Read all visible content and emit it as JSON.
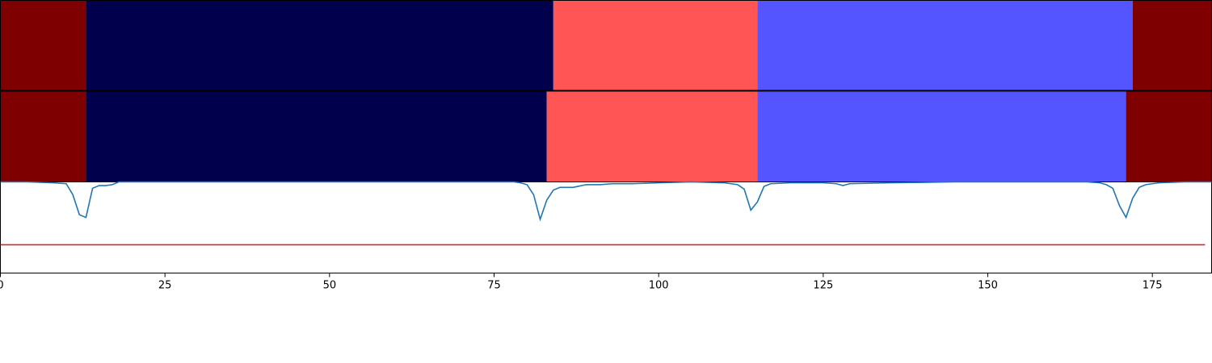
{
  "chart_data": [
    {
      "type": "heatmap",
      "panel": "segmentation-row-1",
      "xlim": [
        0,
        184
      ],
      "segments": [
        {
          "start": 0,
          "end": 13,
          "color": "#7f0000"
        },
        {
          "start": 13,
          "end": 84,
          "color": "#00004c"
        },
        {
          "start": 84,
          "end": 115,
          "color": "#ff5555"
        },
        {
          "start": 115,
          "end": 172,
          "color": "#5555ff"
        },
        {
          "start": 172,
          "end": 184,
          "color": "#7f0000"
        }
      ]
    },
    {
      "type": "heatmap",
      "panel": "segmentation-row-2",
      "xlim": [
        0,
        184
      ],
      "segments": [
        {
          "start": 0,
          "end": 13,
          "color": "#7f0000"
        },
        {
          "start": 13,
          "end": 83,
          "color": "#00004c"
        },
        {
          "start": 83,
          "end": 115,
          "color": "#ff5555"
        },
        {
          "start": 115,
          "end": 171,
          "color": "#5555ff"
        },
        {
          "start": 171,
          "end": 184,
          "color": "#7f0000"
        }
      ]
    },
    {
      "type": "line",
      "panel": "signal",
      "xlim": [
        0,
        184
      ],
      "ylim": [
        0,
        1
      ],
      "xticks": [
        0,
        25,
        50,
        75,
        100,
        125,
        150,
        175
      ],
      "series": [
        {
          "color": "#1f77b4",
          "points": [
            [
              0,
              1.0
            ],
            [
              4,
              1.0
            ],
            [
              8,
              0.99
            ],
            [
              10,
              0.98
            ],
            [
              11,
              0.86
            ],
            [
              12,
              0.64
            ],
            [
              13,
              0.61
            ],
            [
              14,
              0.93
            ],
            [
              15,
              0.96
            ],
            [
              16,
              0.96
            ],
            [
              17,
              0.97
            ],
            [
              18,
              1.0
            ],
            [
              20,
              1.0
            ],
            [
              30,
              1.0
            ],
            [
              40,
              1.0
            ],
            [
              50,
              1.0
            ],
            [
              60,
              1.0
            ],
            [
              70,
              1.0
            ],
            [
              78,
              1.0
            ],
            [
              79,
              0.99
            ],
            [
              80,
              0.97
            ],
            [
              81,
              0.86
            ],
            [
              82,
              0.59
            ],
            [
              83,
              0.8
            ],
            [
              84,
              0.91
            ],
            [
              85,
              0.94
            ],
            [
              87,
              0.94
            ],
            [
              89,
              0.97
            ],
            [
              91,
              0.97
            ],
            [
              93,
              0.98
            ],
            [
              96,
              0.98
            ],
            [
              100,
              0.99
            ],
            [
              105,
              1.0
            ],
            [
              110,
              0.99
            ],
            [
              112,
              0.97
            ],
            [
              113,
              0.92
            ],
            [
              114,
              0.69
            ],
            [
              115,
              0.78
            ],
            [
              116,
              0.95
            ],
            [
              117,
              0.98
            ],
            [
              120,
              0.99
            ],
            [
              125,
              0.99
            ],
            [
              127,
              0.98
            ],
            [
              128,
              0.96
            ],
            [
              129,
              0.98
            ],
            [
              135,
              0.99
            ],
            [
              145,
              1.0
            ],
            [
              155,
              1.0
            ],
            [
              165,
              1.0
            ],
            [
              167,
              0.99
            ],
            [
              168,
              0.97
            ],
            [
              169,
              0.93
            ],
            [
              170,
              0.74
            ],
            [
              171,
              0.61
            ],
            [
              172,
              0.82
            ],
            [
              173,
              0.94
            ],
            [
              174,
              0.97
            ],
            [
              176,
              0.99
            ],
            [
              180,
              1.0
            ],
            [
              184,
              1.0
            ]
          ]
        },
        {
          "color": "#d62728",
          "points": [
            [
              0,
              0.31
            ],
            [
              183,
              0.31
            ]
          ]
        }
      ]
    }
  ]
}
